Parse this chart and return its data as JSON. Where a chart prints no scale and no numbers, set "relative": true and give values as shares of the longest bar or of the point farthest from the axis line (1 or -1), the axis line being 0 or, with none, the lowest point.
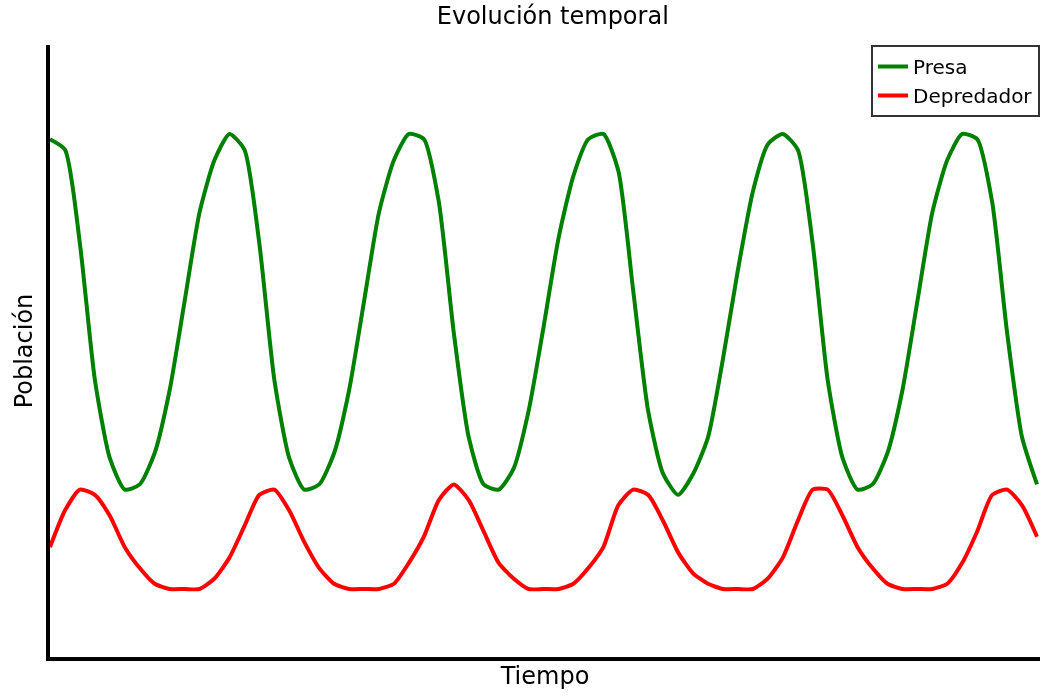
{
  "chart_data": {
    "type": "line",
    "title": "Evolución temporal",
    "xlabel": "Tiempo",
    "ylabel": "Población",
    "relative": true,
    "legend": "top right",
    "categories": [
      null,
      null,
      null,
      null,
      null,
      null,
      null,
      null,
      null,
      null,
      null,
      null,
      null,
      null,
      null,
      null,
      null,
      null,
      null,
      null,
      null,
      null,
      null,
      null,
      null,
      null,
      null,
      null,
      null,
      null,
      null,
      null,
      null,
      null,
      null,
      null,
      null,
      null,
      null,
      null,
      null,
      null,
      null,
      null,
      null,
      null,
      null,
      null,
      null,
      null,
      null,
      null,
      null,
      null,
      null,
      null,
      null,
      null,
      null,
      null,
      null,
      null,
      null,
      null,
      null,
      null,
      null
    ],
    "series": [
      {
        "name": "Presa",
        "color": "#008000",
        "values": [
          0.99,
          0.97,
          0.79,
          0.53,
          0.38,
          0.32,
          0.33,
          0.39,
          0.51,
          0.68,
          0.85,
          0.95,
          1.0,
          0.97,
          0.79,
          0.53,
          0.38,
          0.32,
          0.33,
          0.39,
          0.51,
          0.68,
          0.85,
          0.95,
          1.0,
          0.99,
          0.87,
          0.62,
          0.42,
          0.33,
          0.32,
          0.36,
          0.47,
          0.63,
          0.8,
          0.92,
          0.99,
          1.0,
          0.93,
          0.7,
          0.47,
          0.35,
          0.31,
          0.35,
          0.42,
          0.57,
          0.74,
          0.89,
          0.98,
          1.0,
          0.97,
          0.79,
          0.53,
          0.38,
          0.32,
          0.33,
          0.39,
          0.51,
          0.68,
          0.85,
          0.95,
          1.0,
          0.99,
          0.87,
          0.62,
          0.42,
          0.33
        ]
      },
      {
        "name": "Depredador",
        "color": "#ff0000",
        "values": [
          0.21,
          0.28,
          0.32,
          0.31,
          0.27,
          0.21,
          0.17,
          0.14,
          0.13,
          0.13,
          0.13,
          0.15,
          0.19,
          0.25,
          0.31,
          0.32,
          0.28,
          0.22,
          0.17,
          0.14,
          0.13,
          0.13,
          0.13,
          0.14,
          0.18,
          0.23,
          0.3,
          0.33,
          0.3,
          0.24,
          0.18,
          0.15,
          0.13,
          0.13,
          0.13,
          0.14,
          0.17,
          0.21,
          0.29,
          0.32,
          0.31,
          0.26,
          0.2,
          0.16,
          0.14,
          0.13,
          0.13,
          0.13,
          0.15,
          0.19,
          0.26,
          0.32,
          0.32,
          0.27,
          0.21,
          0.17,
          0.14,
          0.13,
          0.13,
          0.13,
          0.14,
          0.18,
          0.24,
          0.31,
          0.32,
          0.29,
          0.23
        ]
      }
    ]
  }
}
